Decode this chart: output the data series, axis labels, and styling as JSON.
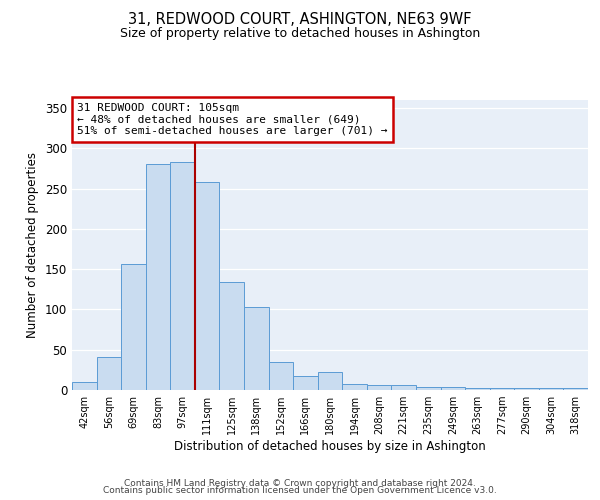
{
  "title": "31, REDWOOD COURT, ASHINGTON, NE63 9WF",
  "subtitle": "Size of property relative to detached houses in Ashington",
  "xlabel": "Distribution of detached houses by size in Ashington",
  "ylabel": "Number of detached properties",
  "bar_labels": [
    "42sqm",
    "56sqm",
    "69sqm",
    "83sqm",
    "97sqm",
    "111sqm",
    "125sqm",
    "138sqm",
    "152sqm",
    "166sqm",
    "180sqm",
    "194sqm",
    "208sqm",
    "221sqm",
    "235sqm",
    "249sqm",
    "263sqm",
    "277sqm",
    "290sqm",
    "304sqm",
    "318sqm"
  ],
  "bar_heights": [
    10,
    41,
    157,
    280,
    283,
    258,
    134,
    103,
    35,
    18,
    22,
    8,
    6,
    6,
    4,
    4,
    3,
    2,
    2,
    2,
    2
  ],
  "bar_color": "#c9dcf0",
  "bar_edgecolor": "#5b9bd5",
  "vline_x": 4.5,
  "vline_color": "#aa0000",
  "ylim": [
    0,
    360
  ],
  "yticks": [
    0,
    50,
    100,
    150,
    200,
    250,
    300,
    350
  ],
  "annotation_title": "31 REDWOOD COURT: 105sqm",
  "annotation_line1": "← 48% of detached houses are smaller (649)",
  "annotation_line2": "51% of semi-detached houses are larger (701) →",
  "annotation_box_edgecolor": "#cc0000",
  "footer_line1": "Contains HM Land Registry data © Crown copyright and database right 2024.",
  "footer_line2": "Contains public sector information licensed under the Open Government Licence v3.0.",
  "background_color": "#ffffff",
  "plot_bg_color": "#e8eff8"
}
